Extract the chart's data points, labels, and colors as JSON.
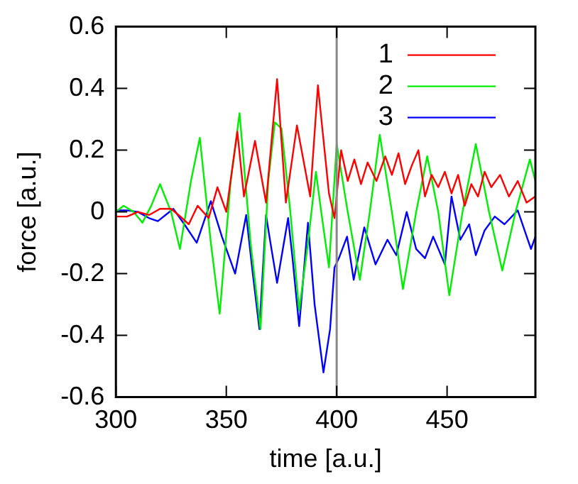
{
  "chart_data": {
    "type": "line",
    "xlabel": "time [a.u.]",
    "ylabel": "force [a.u.]",
    "xlim": [
      300,
      490
    ],
    "xticks": [
      300,
      350,
      400,
      450
    ],
    "ylim": [
      -0.6,
      0.6
    ],
    "yticks": [
      -0.6,
      -0.4,
      -0.2,
      0,
      0.2,
      0.4,
      0.6
    ],
    "grid": false,
    "legend": "top right",
    "marker": "none",
    "line_style": "solid",
    "ref_lines": [
      {
        "axis": "x",
        "value": 400,
        "color": "#888888"
      }
    ],
    "series": [
      {
        "name": "1",
        "color": "#ff0000",
        "x": [
          300,
          305,
          310,
          315,
          320,
          325,
          330,
          333,
          337,
          342,
          346,
          350,
          355,
          358,
          363,
          368,
          373,
          377,
          382,
          388,
          391.5,
          396.5,
          399,
          402,
          405,
          408,
          411,
          414,
          418,
          422,
          425,
          428,
          431,
          434,
          437,
          440,
          443,
          446,
          449,
          452,
          455,
          458,
          461,
          464,
          467,
          470,
          474,
          478,
          482,
          486,
          490
        ],
        "values": [
          -0.015,
          -0.015,
          0,
          -0.01,
          0.01,
          0.01,
          -0.02,
          -0.04,
          0.02,
          -0.02,
          0.08,
          0.0,
          0.26,
          0.05,
          0.23,
          0.03,
          0.43,
          0.03,
          0.28,
          0.05,
          0.41,
          0.06,
          -0.02,
          0.2,
          0.1,
          0.17,
          0.09,
          0.16,
          0.1,
          0.18,
          0.12,
          0.19,
          0.09,
          0.15,
          0.2,
          0.05,
          0.12,
          0.08,
          0.13,
          0.06,
          0.12,
          0.02,
          0.09,
          0.05,
          0.13,
          0.08,
          0.12,
          0.05,
          0.1,
          0.03,
          0.05
        ]
      },
      {
        "name": "2",
        "color": "#00ee00",
        "x": [
          300,
          303.5,
          308,
          312,
          316,
          320,
          325,
          329,
          334,
          338,
          343,
          347,
          352,
          356,
          361,
          365.5,
          369,
          372,
          375,
          379,
          383,
          387,
          390.6,
          393,
          396.5,
          400,
          405,
          410.5,
          415,
          419.5,
          425,
          430,
          436,
          441,
          446,
          451,
          457,
          463,
          469,
          475,
          481,
          487.5,
          490
        ],
        "values": [
          0.0,
          0.02,
          0.0,
          -0.035,
          0.02,
          0.09,
          0.0,
          -0.12,
          0.1,
          0.24,
          -0.1,
          -0.33,
          0.1,
          0.32,
          -0.1,
          -0.38,
          0.1,
          0.29,
          0.27,
          0.0,
          -0.32,
          -0.1,
          0.13,
          0.0,
          -0.18,
          0.22,
          0.0,
          -0.22,
          0.0,
          0.25,
          0.0,
          -0.25,
          0.0,
          0.18,
          0.0,
          -0.27,
          0.0,
          0.22,
          0.0,
          -0.19,
          0.0,
          0.17,
          0.1
        ]
      },
      {
        "name": "3",
        "color": "#0000ff",
        "x": [
          300,
          305,
          310,
          315,
          319,
          326,
          331,
          336.6,
          343,
          348,
          354,
          359,
          362,
          365,
          368,
          370,
          373,
          378,
          380,
          383,
          387,
          390,
          394,
          397,
          399,
          401,
          404.7,
          407.7,
          412.5,
          417.6,
          423,
          427,
          431.7,
          436,
          440,
          443.7,
          449,
          452,
          456,
          460,
          463,
          467,
          471.6,
          476,
          482,
          488,
          490
        ],
        "values": [
          0.005,
          0.005,
          0,
          -0.02,
          -0.03,
          0.01,
          -0.04,
          -0.1,
          0.035,
          -0.08,
          -0.2,
          -0.01,
          -0.2,
          -0.38,
          -0.01,
          -0.1,
          -0.23,
          -0.02,
          -0.15,
          -0.37,
          -0.035,
          -0.3,
          -0.52,
          -0.38,
          -0.18,
          -0.15,
          -0.08,
          -0.22,
          -0.05,
          -0.17,
          -0.09,
          -0.14,
          0.0,
          -0.12,
          -0.15,
          -0.08,
          -0.17,
          0.05,
          -0.09,
          -0.04,
          -0.14,
          -0.06,
          -0.015,
          -0.04,
          0.005,
          -0.12,
          -0.08
        ]
      }
    ]
  }
}
